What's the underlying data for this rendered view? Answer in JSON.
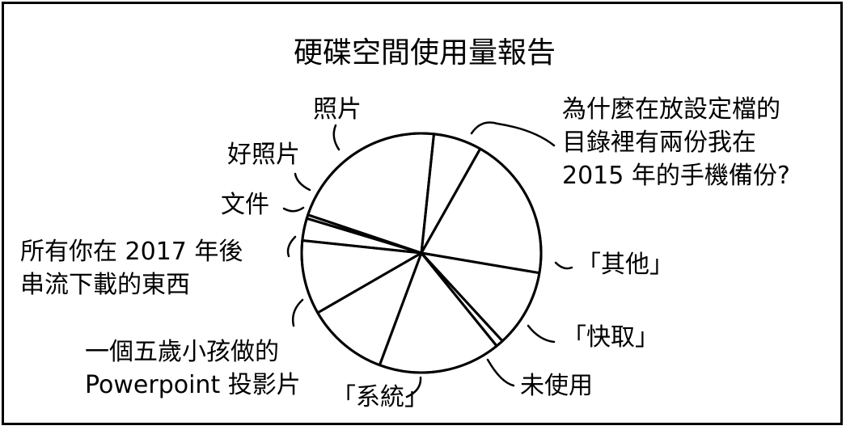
{
  "chart_data": {
    "type": "pie",
    "title": "硬碟空間使用量報告",
    "slices": [
      {
        "label": "為什麼在放設定檔的目錄裡有兩份我在2015年的手機備份?",
        "lines": [
          "為什麼在放設定檔的",
          "目錄裡有兩份我在",
          "2015 年的手機備份?"
        ],
        "value": 6.5
      },
      {
        "label": "「其他」",
        "lines": [
          "「其他」"
        ],
        "value": 19.5
      },
      {
        "label": "「快取」",
        "lines": [
          "「快取」"
        ],
        "value": 10.5
      },
      {
        "label": "未使用",
        "lines": [
          "未使用"
        ],
        "value": 1.0
      },
      {
        "label": "「系統」",
        "lines": [
          "「系統」"
        ],
        "value": 16.5
      },
      {
        "label": "一個五歲小孩做的Powerpoint投影片",
        "lines": [
          "一個五歲小孩做的",
          "Powerpoint 投影片"
        ],
        "value": 11.0
      },
      {
        "label": "所有你在2017年後串流下載的東西",
        "lines": [
          "所有你在 2017 年後",
          "串流下載的東西"
        ],
        "value": 10.0
      },
      {
        "label": "文件",
        "lines": [
          "文件"
        ],
        "value": 3.0
      },
      {
        "label": "好照片",
        "lines": [
          "好照片"
        ],
        "value": 0.5
      },
      {
        "label": "照片",
        "lines": [
          "照片"
        ],
        "value": 21.5
      }
    ]
  }
}
